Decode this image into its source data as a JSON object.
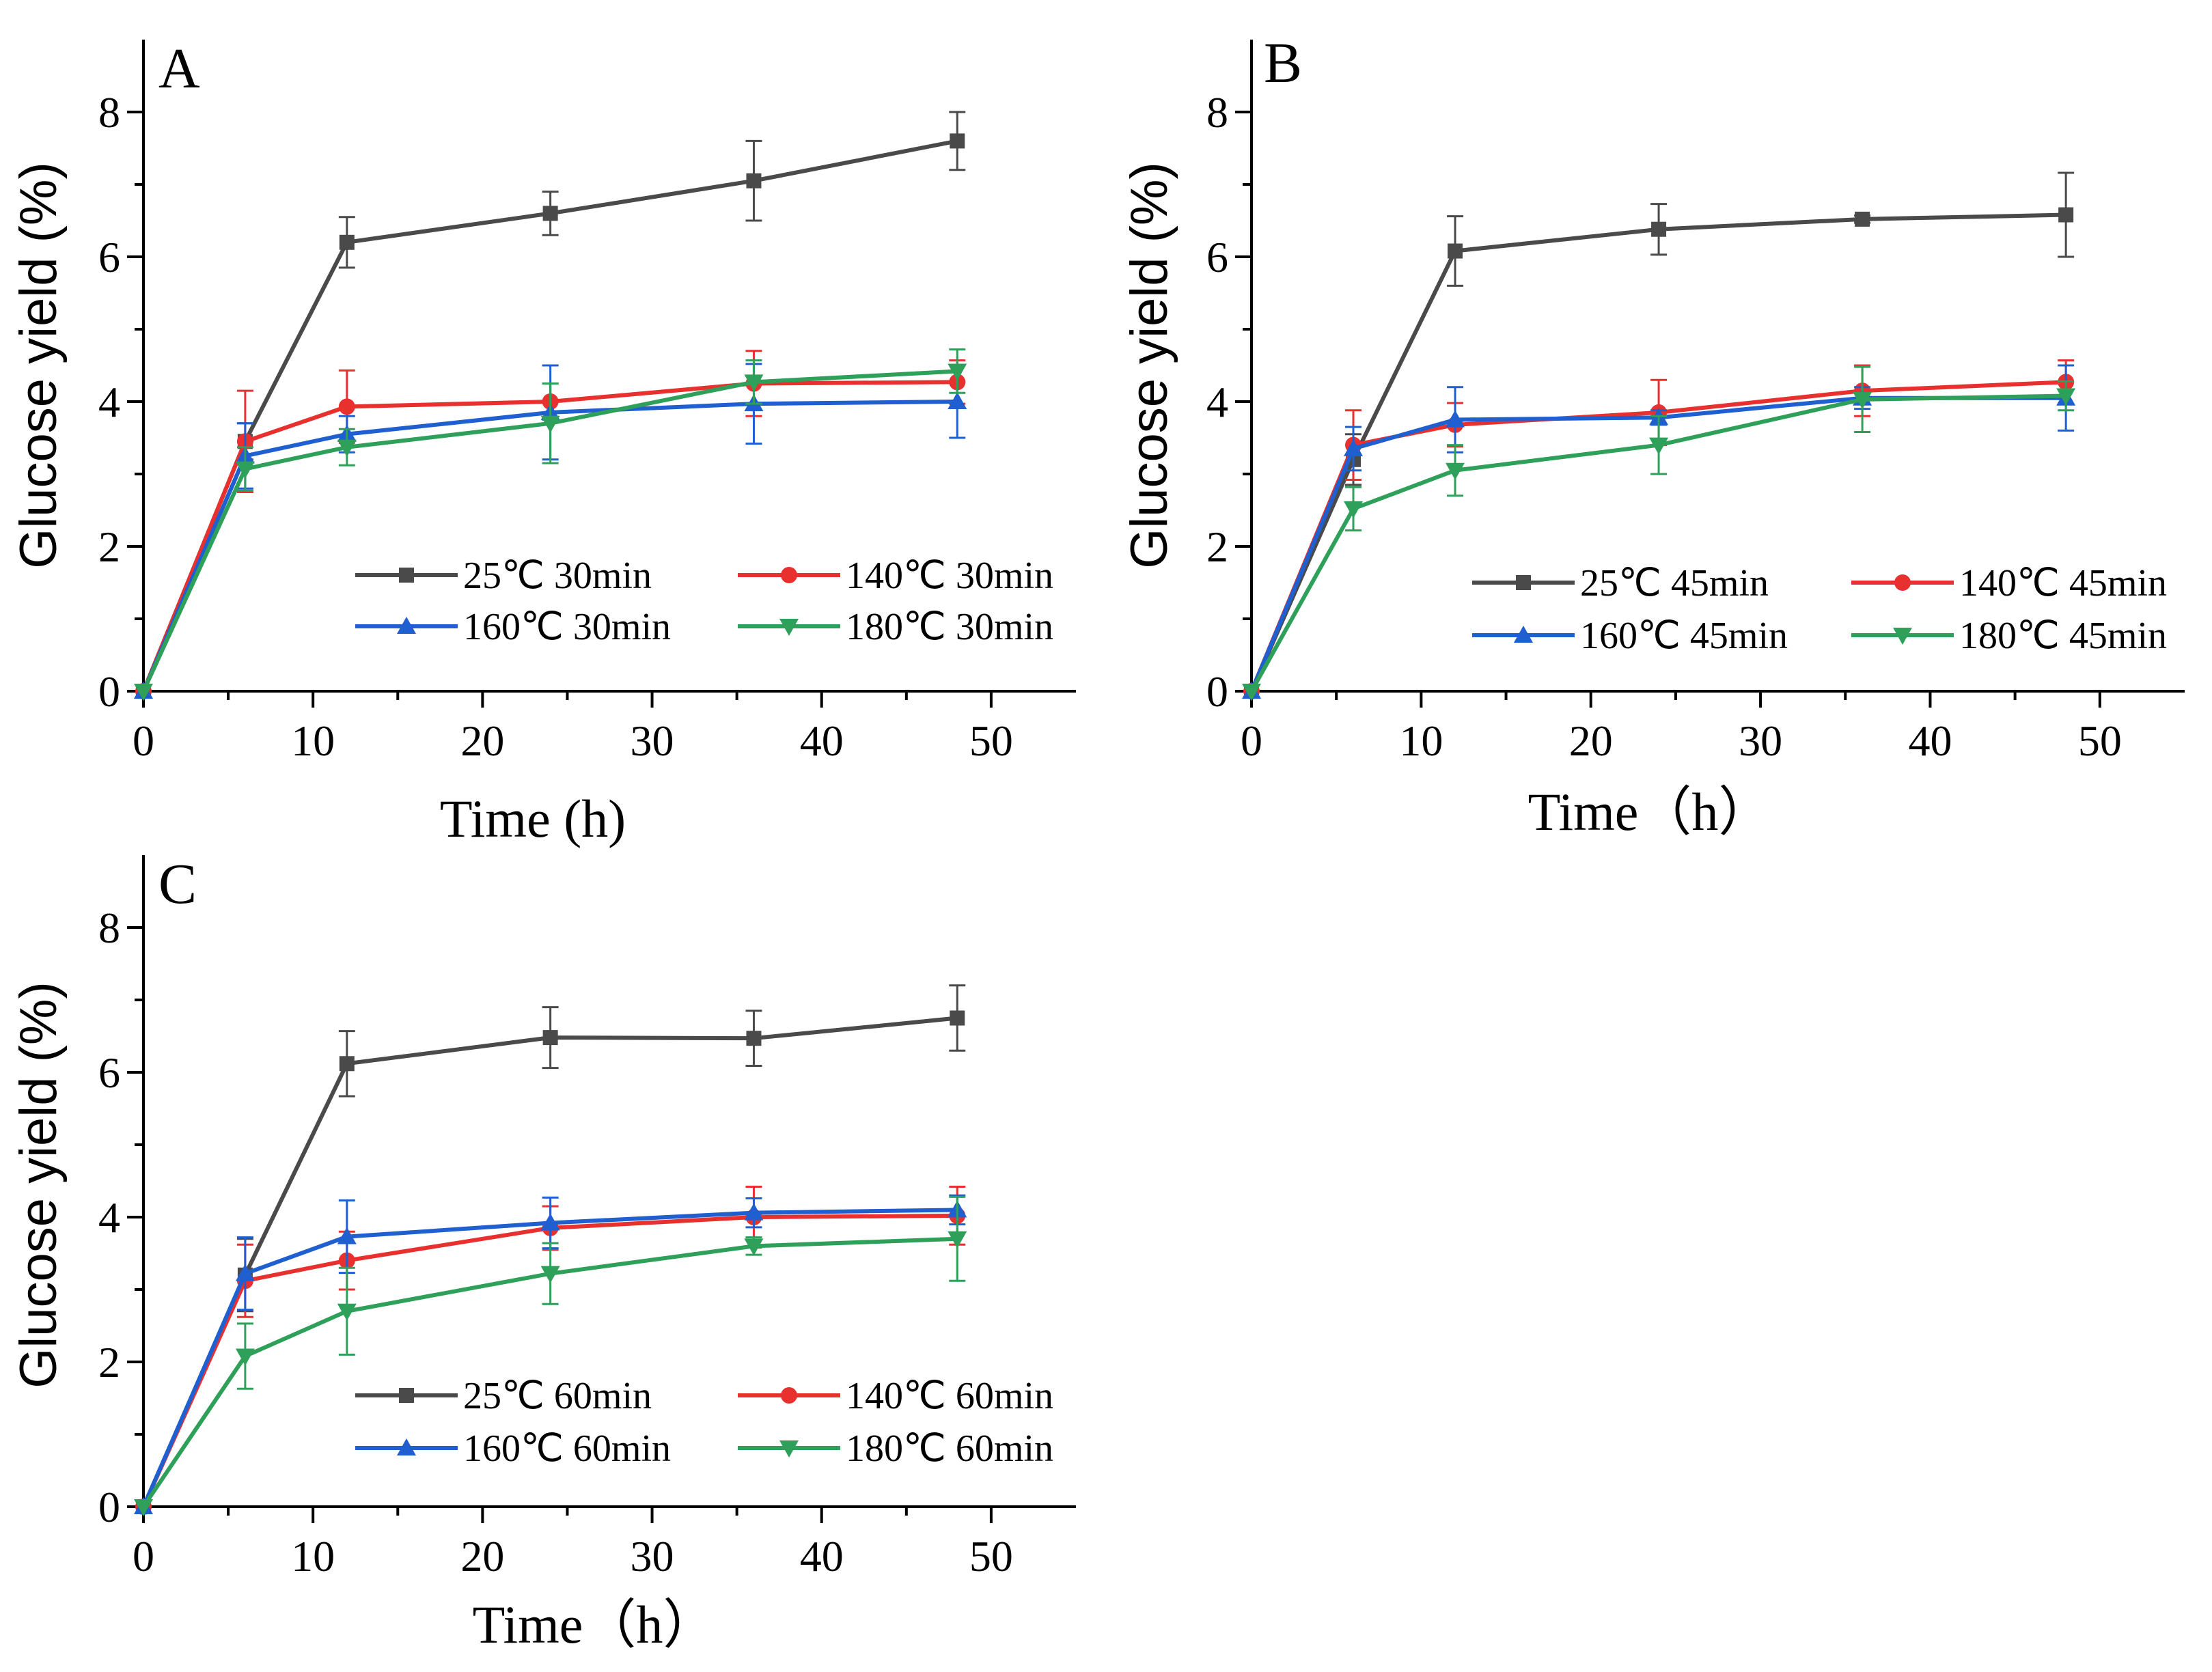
{
  "chart_data": [
    {
      "type": "line",
      "panel_label": "A",
      "xlabel": "Time (h)",
      "ylabel": "Glucose yield (%)",
      "xlim": [
        0,
        55
      ],
      "ylim": [
        0,
        9
      ],
      "xticks": [
        0,
        10,
        20,
        30,
        40,
        50
      ],
      "yticks": [
        0,
        2,
        4,
        6,
        8
      ],
      "legend_position": "lower-right",
      "x": [
        0,
        6,
        12,
        24,
        36,
        48
      ],
      "series": [
        {
          "name": "25℃ 30min",
          "color": "#4a4a4a",
          "marker": "square",
          "values": [
            0,
            3.45,
            6.2,
            6.6,
            7.05,
            7.6
          ],
          "errors": [
            0,
            0.25,
            0.35,
            0.3,
            0.55,
            0.4
          ]
        },
        {
          "name": "140℃ 30min",
          "color": "#e8302f",
          "marker": "circle",
          "values": [
            0,
            3.45,
            3.93,
            4.0,
            4.25,
            4.27
          ],
          "errors": [
            0,
            0.7,
            0.5,
            0.25,
            0.45,
            0.3
          ]
        },
        {
          "name": "160℃ 30min",
          "color": "#1f5fd0",
          "marker": "triangle-up",
          "values": [
            0,
            3.25,
            3.55,
            3.85,
            3.97,
            4.0
          ],
          "errors": [
            0,
            0.45,
            0.25,
            0.65,
            0.55,
            0.5
          ]
        },
        {
          "name": "180℃ 30min",
          "color": "#2ea05a",
          "marker": "triangle-down",
          "values": [
            0,
            3.07,
            3.37,
            3.7,
            4.27,
            4.42
          ],
          "errors": [
            0,
            0.3,
            0.25,
            0.55,
            0.3,
            0.3
          ]
        }
      ]
    },
    {
      "type": "line",
      "panel_label": "B",
      "xlabel": "Time（h）",
      "ylabel": "Glucose yield (%)",
      "xlim": [
        0,
        55
      ],
      "ylim": [
        0,
        9
      ],
      "xticks": [
        0,
        10,
        20,
        30,
        40,
        50
      ],
      "yticks": [
        0,
        2,
        4,
        6,
        8
      ],
      "legend_position": "lower-right",
      "x": [
        0,
        6,
        12,
        24,
        36,
        48
      ],
      "series": [
        {
          "name": "25℃ 45min",
          "color": "#4a4a4a",
          "marker": "square",
          "values": [
            0,
            3.2,
            6.08,
            6.38,
            6.52,
            6.58
          ],
          "errors": [
            0,
            0.35,
            0.48,
            0.35,
            0.05,
            0.58
          ]
        },
        {
          "name": "140℃ 45min",
          "color": "#e8302f",
          "marker": "circle",
          "values": [
            0,
            3.4,
            3.68,
            3.85,
            4.15,
            4.27
          ],
          "errors": [
            0,
            0.48,
            0.3,
            0.45,
            0.35,
            0.3
          ]
        },
        {
          "name": "160℃ 45min",
          "color": "#1f5fd0",
          "marker": "triangle-up",
          "values": [
            0,
            3.35,
            3.75,
            3.78,
            4.05,
            4.05
          ],
          "errors": [
            0,
            0.3,
            0.45,
            0.1,
            0.15,
            0.45
          ]
        },
        {
          "name": "180℃ 45min",
          "color": "#2ea05a",
          "marker": "triangle-down",
          "values": [
            0,
            2.52,
            3.05,
            3.4,
            4.03,
            4.08
          ],
          "errors": [
            0,
            0.3,
            0.35,
            0.4,
            0.45,
            0.2
          ]
        }
      ]
    },
    {
      "type": "line",
      "panel_label": "C",
      "xlabel": "Time（h）",
      "ylabel": "Glucose yield (%)",
      "xlim": [
        0,
        55
      ],
      "ylim": [
        0,
        9
      ],
      "xticks": [
        0,
        10,
        20,
        30,
        40,
        50
      ],
      "yticks": [
        0,
        2,
        4,
        6,
        8
      ],
      "legend_position": "lower-right",
      "x": [
        0,
        6,
        12,
        24,
        36,
        48
      ],
      "series": [
        {
          "name": "25℃ 60min",
          "color": "#4a4a4a",
          "marker": "square",
          "values": [
            0,
            3.2,
            6.12,
            6.48,
            6.47,
            6.75
          ],
          "errors": [
            0,
            0.5,
            0.45,
            0.42,
            0.38,
            0.45
          ]
        },
        {
          "name": "140℃ 60min",
          "color": "#e8302f",
          "marker": "circle",
          "values": [
            0,
            3.12,
            3.4,
            3.85,
            4.0,
            4.02
          ],
          "errors": [
            0,
            0.5,
            0.4,
            0.3,
            0.42,
            0.4
          ]
        },
        {
          "name": "160℃ 60min",
          "color": "#1f5fd0",
          "marker": "triangle-up",
          "values": [
            0,
            3.22,
            3.73,
            3.92,
            4.06,
            4.1
          ],
          "errors": [
            0,
            0.5,
            0.5,
            0.35,
            0.2,
            0.2
          ]
        },
        {
          "name": "180℃ 60min",
          "color": "#2ea05a",
          "marker": "triangle-down",
          "values": [
            0,
            2.08,
            2.7,
            3.22,
            3.6,
            3.7
          ],
          "errors": [
            0,
            0.45,
            0.6,
            0.42,
            0.12,
            0.58
          ]
        }
      ]
    }
  ]
}
